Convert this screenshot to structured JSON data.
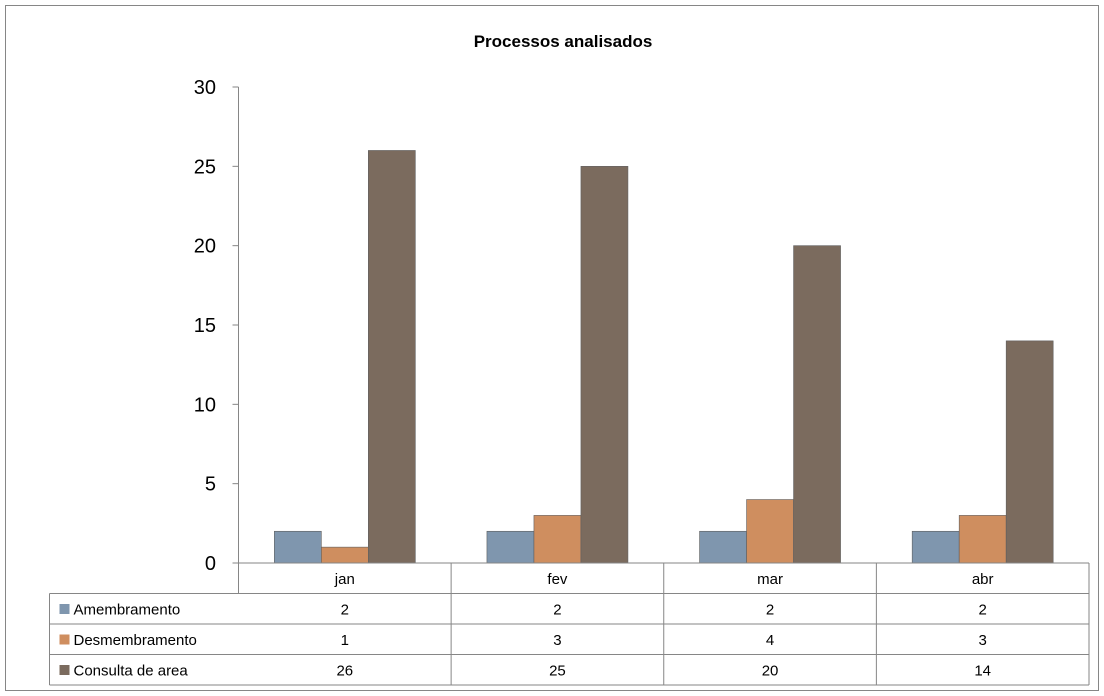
{
  "chart_data": {
    "type": "bar",
    "title": "Processos analisados",
    "categories": [
      "jan",
      "fev",
      "mar",
      "abr"
    ],
    "ylim": [
      0,
      30
    ],
    "yticks": [
      0,
      5,
      10,
      15,
      20,
      25,
      30
    ],
    "grid": false,
    "legend": "data-table",
    "series": [
      {
        "name": "Amembramento",
        "color": "#7f96ae",
        "values": [
          2,
          2,
          2,
          2
        ]
      },
      {
        "name": "Desmembramento",
        "color": "#cf8e5f",
        "values": [
          1,
          3,
          4,
          3
        ]
      },
      {
        "name": "Consulta de area",
        "color": "#7b6b5e",
        "values": [
          26,
          25,
          20,
          14
        ]
      }
    ]
  }
}
